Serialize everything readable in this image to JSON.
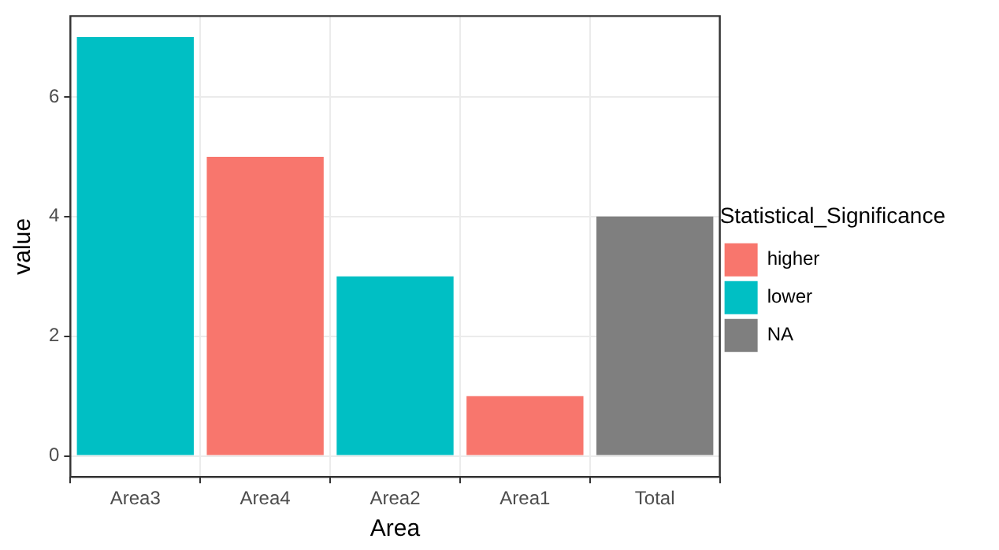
{
  "chart_data": {
    "type": "bar",
    "xlabel": "Area",
    "ylabel": "value",
    "legend_title": "Statistical_Significance",
    "categories": [
      "Area3",
      "Area4",
      "Area2",
      "Area1",
      "Total"
    ],
    "series": [
      {
        "name": "higher",
        "color": "#f8766d",
        "values": [
          null,
          5,
          null,
          1,
          null
        ]
      },
      {
        "name": "lower",
        "color": "#00bfc4",
        "values": [
          7,
          null,
          3,
          null,
          null
        ]
      },
      {
        "name": "NA",
        "color": "#7f7f7f",
        "values": [
          null,
          null,
          null,
          null,
          4
        ]
      }
    ],
    "ylim": [
      -0.35,
      7.35
    ],
    "yticks": [
      0,
      2,
      4,
      6
    ],
    "grid": true,
    "legend": "right"
  }
}
